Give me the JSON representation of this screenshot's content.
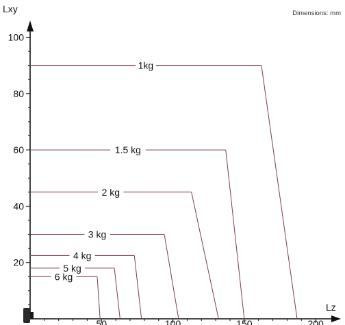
{
  "chart_data": {
    "type": "line",
    "note": "Dimensions: mm",
    "xlabel": "Lz",
    "ylabel": "Lxy",
    "xlim": [
      0,
      210
    ],
    "ylim": [
      0,
      104
    ],
    "xticks": [
      50,
      100,
      150,
      200
    ],
    "yticks": [
      20,
      40,
      60,
      80,
      100
    ],
    "grid": false,
    "line_color": "#7a3b50",
    "series": [
      {
        "name": "1kg",
        "points": [
          [
            0,
            90
          ],
          [
            162,
            90
          ],
          [
            187,
            0
          ]
        ]
      },
      {
        "name": "1.5 kg",
        "points": [
          [
            0,
            60
          ],
          [
            137,
            60
          ],
          [
            150,
            0
          ]
        ]
      },
      {
        "name": "2 kg",
        "points": [
          [
            0,
            45
          ],
          [
            113,
            45
          ],
          [
            132,
            0
          ]
        ]
      },
      {
        "name": "3 kg",
        "points": [
          [
            0,
            30
          ],
          [
            94,
            30
          ],
          [
            104,
            0
          ]
        ]
      },
      {
        "name": "4 kg",
        "points": [
          [
            0,
            22.5
          ],
          [
            73,
            22.5
          ],
          [
            78,
            0
          ]
        ]
      },
      {
        "name": "5 kg",
        "points": [
          [
            0,
            18
          ],
          [
            59,
            18
          ],
          [
            63,
            0
          ]
        ]
      },
      {
        "name": "6 kg",
        "points": [
          [
            0,
            15
          ],
          [
            47,
            15
          ],
          [
            49,
            0
          ]
        ]
      }
    ]
  }
}
